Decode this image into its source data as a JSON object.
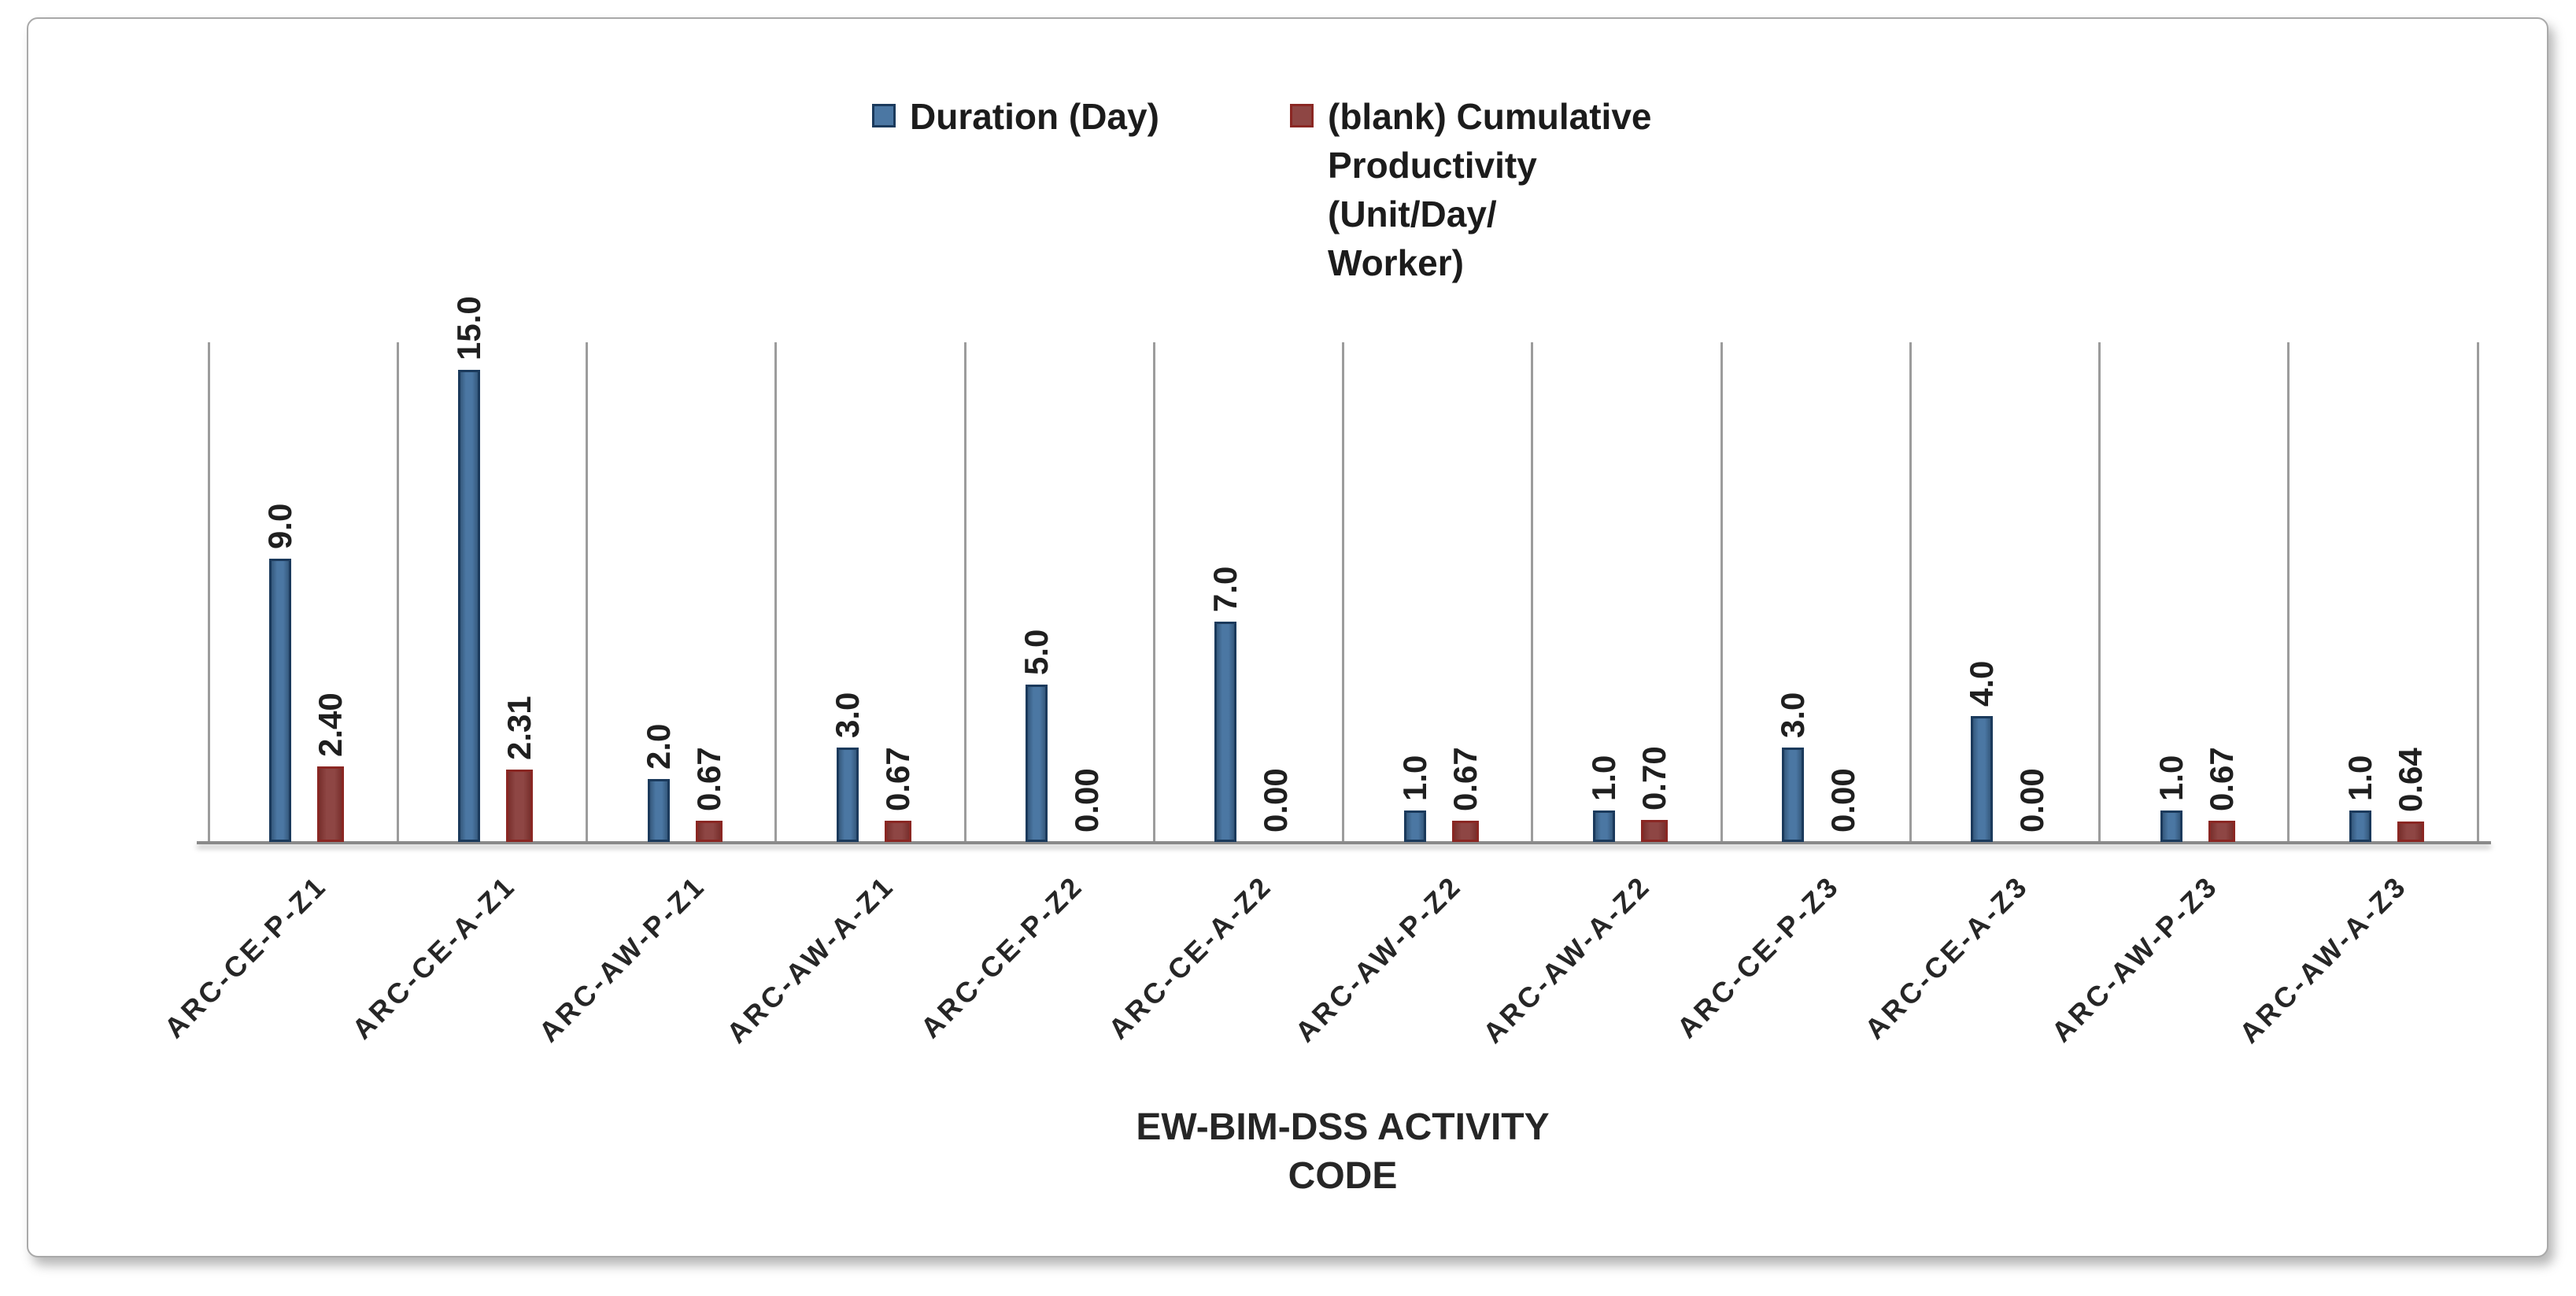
{
  "chart_data": {
    "type": "bar",
    "title": "",
    "xlabel": "EW-BIM-DSS ACTIVITY CODE",
    "ylabel": "",
    "categories": [
      "ARC-CE-P-Z1",
      "ARC-CE-A-Z1",
      "ARC-AW-P-Z1",
      "ARC-AW-A-Z1",
      "ARC-CE-P-Z2",
      "ARC-CE-A-Z2",
      "ARC-AW-P-Z2",
      "ARC-AW-A-Z2",
      "ARC-CE-P-Z3",
      "ARC-CE-A-Z3",
      "ARC-AW-P-Z3",
      "ARC-AW-A-Z3"
    ],
    "series": [
      {
        "name": "Duration (Day)",
        "values": [
          9.0,
          15.0,
          2.0,
          3.0,
          5.0,
          7.0,
          1.0,
          1.0,
          3.0,
          4.0,
          1.0,
          1.0
        ],
        "label_decimals": 1,
        "fill": "#4b77a3",
        "edge": "#35597d",
        "border": "#1b3a5c"
      },
      {
        "name": "(blank) Cumulative Productivity (Unit/Day/Worker)",
        "values": [
          2.4,
          2.31,
          0.67,
          0.67,
          0.0,
          0.0,
          0.67,
          0.7,
          0.0,
          0.0,
          0.67,
          0.64
        ],
        "label_decimals": 2,
        "fill": "#8e4644",
        "edge": "#79302d",
        "border": "#8a2723"
      }
    ],
    "ylim": [
      0,
      16.1
    ],
    "grid": "vertical category separator lines only",
    "legend_position": "top-center",
    "data_labels": "rotated 90 degrees, outside end of bars"
  },
  "legend": {
    "items": [
      {
        "lines": [
          "Duration (Day)"
        ],
        "fill": "#4b77a3",
        "border": "#1b3a5c"
      },
      {
        "lines": [
          "(blank) Cumulative",
          "Productivity",
          "(Unit/Day/",
          "Worker)"
        ],
        "fill": "#8e4644",
        "border": "#8a2723"
      }
    ]
  },
  "x_axis": {
    "title_lines": [
      "EW-BIM-DSS ACTIVITY",
      "CODE"
    ]
  }
}
